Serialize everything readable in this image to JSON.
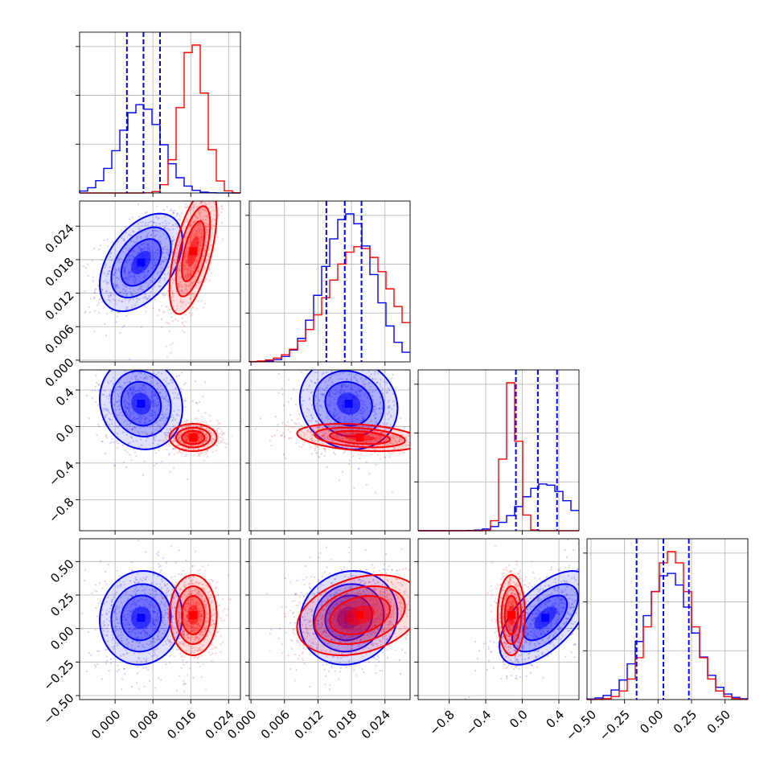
{
  "chart_data": {
    "type": "corner",
    "grid": true,
    "parameters": [
      {
        "ticks": [
          0.0,
          0.008,
          0.016,
          0.024
        ],
        "tick_labels": [
          "0.000",
          "0.008",
          "0.016",
          "0.024"
        ],
        "range": [
          -0.0075,
          0.0265
        ]
      },
      {
        "ticks": [
          0.0,
          0.006,
          0.012,
          0.018,
          0.024
        ],
        "tick_labels": [
          "0.000",
          "0.006",
          "0.012",
          "0.018",
          "0.024"
        ],
        "range": [
          -0.0003,
          0.0285
        ]
      },
      {
        "ticks": [
          -0.8,
          -0.4,
          0.0,
          0.4
        ],
        "tick_labels": [
          "−0.8",
          "−0.4",
          "0.0",
          "0.4"
        ],
        "range": [
          -1.14,
          0.62
        ]
      },
      {
        "ticks": [
          -0.5,
          -0.25,
          0.0,
          0.25,
          0.5
        ],
        "tick_labels": [
          "−0.50",
          "−0.25",
          "0.00",
          "0.25",
          "0.50"
        ],
        "range": [
          -0.53,
          0.67
        ]
      }
    ],
    "series": [
      {
        "color": "#0000ff",
        "means": [
          0.0055,
          0.0175,
          0.25,
          0.08
        ],
        "sds": [
          0.0035,
          0.0035,
          0.2,
          0.14
        ],
        "correlations": [
          [
            0,
            1,
            0.45
          ],
          [
            0,
            2,
            -0.1
          ],
          [
            0,
            3,
            0.05
          ],
          [
            1,
            2,
            -0.1
          ],
          [
            1,
            3,
            0.1
          ],
          [
            2,
            3,
            0.6
          ]
        ],
        "quantiles": [
          [
            0.0025,
            0.006,
            0.0095
          ],
          [
            0.0135,
            0.0168,
            0.0198
          ],
          [
            -0.07,
            0.17,
            0.38
          ],
          [
            -0.16,
            0.04,
            0.23
          ]
        ]
      },
      {
        "color": "#ff0000",
        "means": [
          0.0165,
          0.0195,
          -0.12,
          0.1
        ],
        "sds": [
          0.002,
          0.0045,
          0.06,
          0.12
        ],
        "correlations": [
          [
            0,
            1,
            0.6
          ],
          [
            0,
            2,
            0.0
          ],
          [
            0,
            3,
            0.0
          ],
          [
            1,
            2,
            -0.3
          ],
          [
            1,
            3,
            0.3
          ],
          [
            2,
            3,
            0.0
          ]
        ],
        "quantiles": []
      }
    ],
    "quantile_line_color": "#0000ff"
  }
}
